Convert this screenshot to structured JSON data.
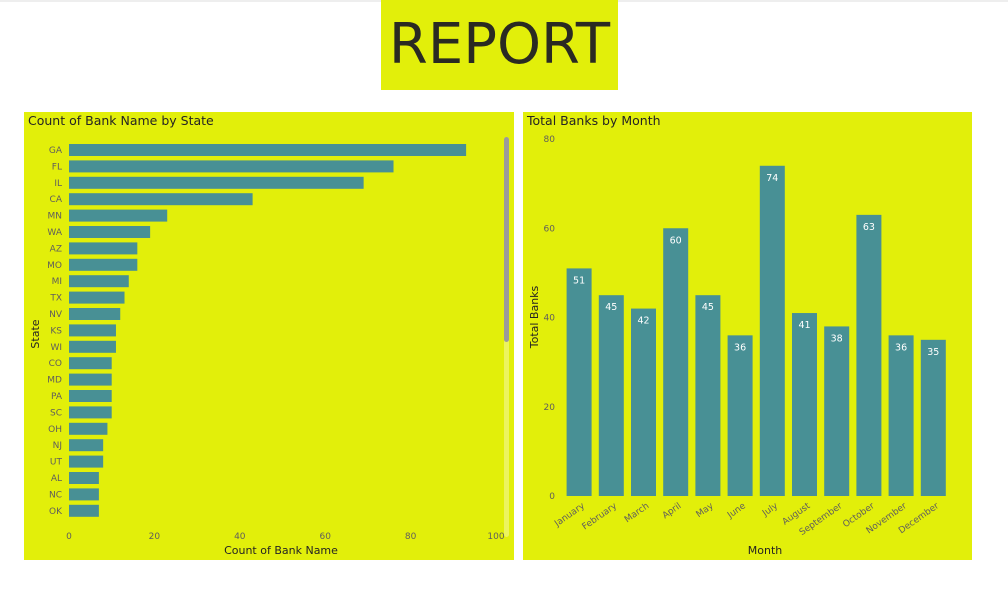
{
  "page": {
    "title": "REPORT"
  },
  "colors": {
    "panel_bg": "#e2ef0a",
    "bar": "#489095",
    "text": "#252423",
    "tick": "#605e5c"
  },
  "chart_data": [
    {
      "type": "bar",
      "orientation": "horizontal",
      "title": "Count of Bank Name by State",
      "xlabel": "Count of Bank Name",
      "ylabel": "State",
      "categories": [
        "GA",
        "FL",
        "IL",
        "CA",
        "MN",
        "WA",
        "AZ",
        "MO",
        "MI",
        "TX",
        "NV",
        "KS",
        "WI",
        "CO",
        "MD",
        "PA",
        "SC",
        "OH",
        "NJ",
        "UT",
        "AL",
        "NC",
        "OK"
      ],
      "values": [
        93,
        76,
        69,
        43,
        23,
        19,
        16,
        16,
        14,
        13,
        12,
        11,
        11,
        10,
        10,
        10,
        10,
        9,
        8,
        8,
        7,
        7,
        7
      ],
      "xlim": [
        0,
        100
      ],
      "xticks": [
        "0",
        "20",
        "40",
        "60",
        "80",
        "100"
      ],
      "grid": false,
      "scrollable": true
    },
    {
      "type": "bar",
      "orientation": "vertical",
      "title": "Total Banks by Month",
      "xlabel": "Month",
      "ylabel": "Total Banks",
      "categories": [
        "January",
        "February",
        "March",
        "April",
        "May",
        "June",
        "July",
        "August",
        "September",
        "October",
        "November",
        "December"
      ],
      "values": [
        51,
        45,
        42,
        60,
        45,
        36,
        74,
        41,
        38,
        63,
        36,
        35
      ],
      "data_labels": [
        "51",
        "45",
        "42",
        "60",
        "45",
        "36",
        "74",
        "41",
        "38",
        "63",
        "36",
        "35"
      ],
      "ylim": [
        0,
        80
      ],
      "yticks": [
        "0",
        "20",
        "40",
        "60",
        "80"
      ],
      "grid": false
    }
  ]
}
